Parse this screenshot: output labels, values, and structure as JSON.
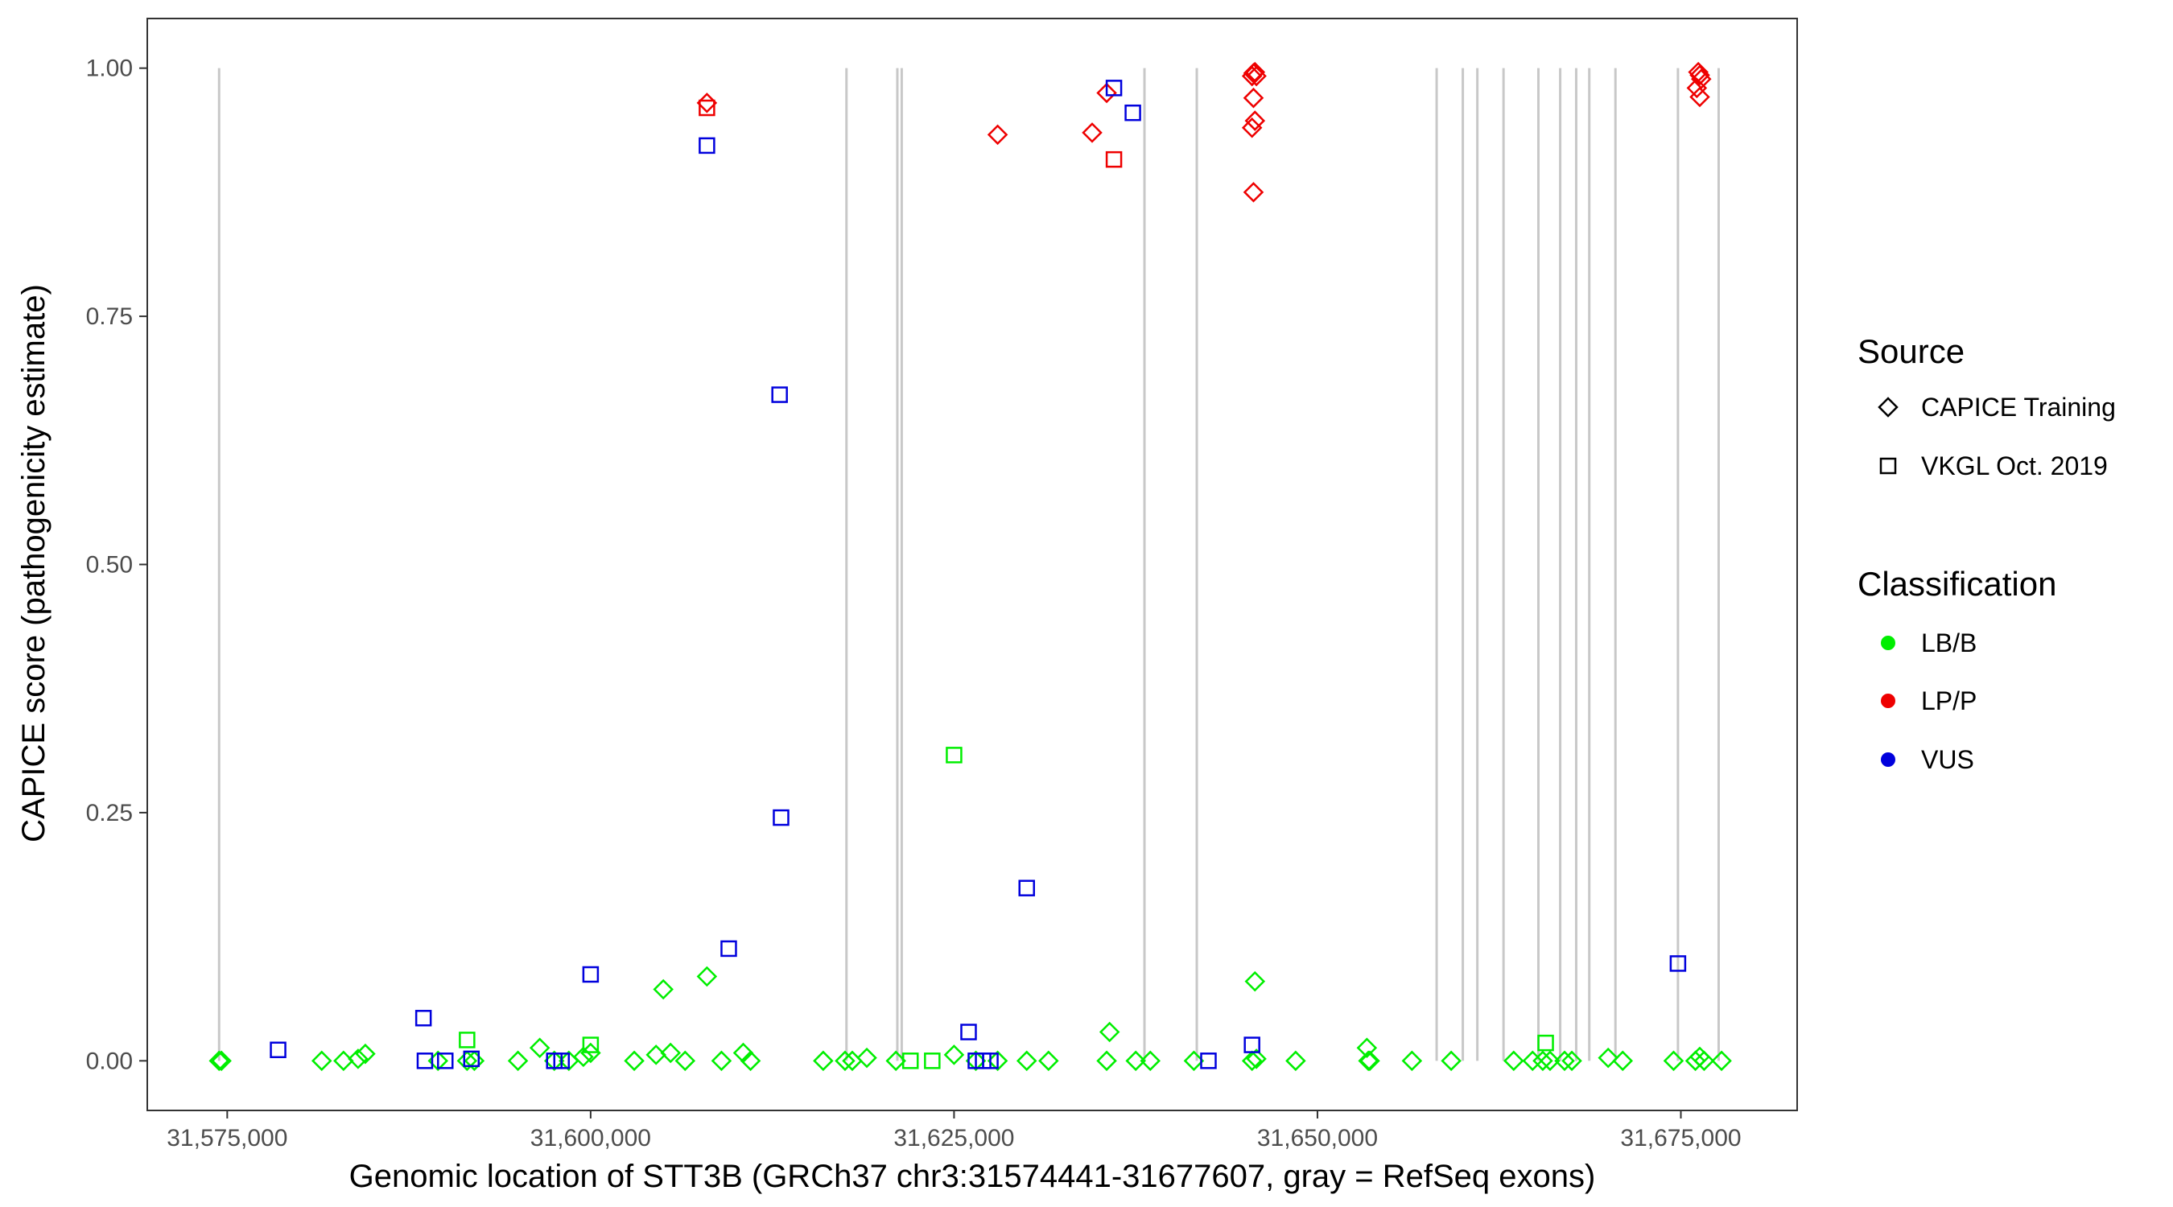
{
  "chart_data": {
    "type": "scatter",
    "xlabel": "Genomic location of STT3B (GRCh37 chr3:31574441-31677607, gray = RefSeq exons)",
    "ylabel": "CAPICE score (pathogenicity estimate)",
    "xlim": [
      31569500,
      31683000
    ],
    "ylim": [
      -0.05,
      1.05
    ],
    "x_ticks": [
      31575000,
      31600000,
      31625000,
      31650000,
      31675000
    ],
    "x_tick_labels": [
      "31,575,000",
      "31,600,000",
      "31,625,000",
      "31,650,000",
      "31,675,000"
    ],
    "y_ticks": [
      0,
      0.25,
      0.5,
      0.75,
      1.0
    ],
    "y_tick_labels": [
      "0.00",
      "0.25",
      "0.50",
      "0.75",
      "1.00"
    ],
    "exons": [
      31574441,
      31617600,
      31621100,
      31621400,
      31638100,
      31641700,
      31658200,
      31660000,
      31661000,
      31662800,
      31665200,
      31666700,
      31667800,
      31668700,
      31670500,
      31674800,
      31677600
    ],
    "legend": {
      "source_title": "Source",
      "source_items": [
        {
          "label": "CAPICE Training",
          "shape": "diamond"
        },
        {
          "label": "VKGL Oct. 2019",
          "shape": "square"
        }
      ],
      "class_title": "Classification",
      "class_items": [
        {
          "label": "LB/B",
          "color": "#00ee00"
        },
        {
          "label": "LP/P",
          "color": "#ee0000"
        },
        {
          "label": "VUS",
          "color": "#0000dd"
        }
      ]
    },
    "colors": {
      "LB/B": "#00ee00",
      "LP/P": "#ee0000",
      "VUS": "#0000dd",
      "exon": "#c8c8c8"
    },
    "series": [
      {
        "name": "CAPICE Training LB/B",
        "shape": "diamond",
        "class": "LB/B",
        "points": [
          [
            31574441,
            0.0
          ],
          [
            31574600,
            0.0
          ],
          [
            31581500,
            0.0
          ],
          [
            31583000,
            0.0
          ],
          [
            31584000,
            0.002
          ],
          [
            31584500,
            0.007
          ],
          [
            31589500,
            0.0
          ],
          [
            31591500,
            0.0
          ],
          [
            31592000,
            0.0
          ],
          [
            31595000,
            0.0
          ],
          [
            31596500,
            0.013
          ],
          [
            31597500,
            0.0
          ],
          [
            31598500,
            0.0
          ],
          [
            31599500,
            0.004
          ],
          [
            31600000,
            0.008
          ],
          [
            31603000,
            0.0
          ],
          [
            31604500,
            0.006
          ],
          [
            31605000,
            0.072
          ],
          [
            31605500,
            0.008
          ],
          [
            31606500,
            0.0
          ],
          [
            31608000,
            0.085
          ],
          [
            31609000,
            0.0
          ],
          [
            31610500,
            0.008
          ],
          [
            31611000,
            0.0
          ],
          [
            31616000,
            0.0
          ],
          [
            31617500,
            0.0
          ],
          [
            31618000,
            0.0
          ],
          [
            31619000,
            0.003
          ],
          [
            31621000,
            0.0
          ],
          [
            31625000,
            0.006
          ],
          [
            31626500,
            0.0
          ],
          [
            31628000,
            0.0
          ],
          [
            31630000,
            0.0
          ],
          [
            31631500,
            0.0
          ],
          [
            31635500,
            0.0
          ],
          [
            31635700,
            0.029
          ],
          [
            31637500,
            0.0
          ],
          [
            31638500,
            0.0
          ],
          [
            31641500,
            0.0
          ],
          [
            31645500,
            0.0
          ],
          [
            31645700,
            0.08
          ],
          [
            31645800,
            0.002
          ],
          [
            31648500,
            0.0
          ],
          [
            31653400,
            0.013
          ],
          [
            31653500,
            0.0
          ],
          [
            31653600,
            0.0
          ],
          [
            31656500,
            0.0
          ],
          [
            31659200,
            0.0
          ],
          [
            31663500,
            0.0
          ],
          [
            31664800,
            0.0
          ],
          [
            31665500,
            0.0
          ],
          [
            31666000,
            0.0
          ],
          [
            31667000,
            0.0
          ],
          [
            31667500,
            0.0
          ],
          [
            31670000,
            0.003
          ],
          [
            31671000,
            0.0
          ],
          [
            31674500,
            0.0
          ],
          [
            31676000,
            0.0
          ],
          [
            31676300,
            0.004
          ],
          [
            31676600,
            0.0
          ],
          [
            31677800,
            0.0
          ]
        ]
      },
      {
        "name": "CAPICE Training LP/P",
        "shape": "diamond",
        "class": "LP/P",
        "points": [
          [
            31608000,
            0.965
          ],
          [
            31628000,
            0.933
          ],
          [
            31634500,
            0.935
          ],
          [
            31635500,
            0.975
          ],
          [
            31645500,
            0.992
          ],
          [
            31645600,
            0.995
          ],
          [
            31645700,
            0.996
          ],
          [
            31645800,
            0.992
          ],
          [
            31645600,
            0.97
          ],
          [
            31645700,
            0.947
          ],
          [
            31645500,
            0.94
          ],
          [
            31645600,
            0.875
          ],
          [
            31676200,
            0.996
          ],
          [
            31676300,
            0.993
          ],
          [
            31676400,
            0.989
          ],
          [
            31676100,
            0.98
          ],
          [
            31676300,
            0.971
          ]
        ]
      },
      {
        "name": "VKGL LB/B",
        "shape": "square",
        "class": "LB/B",
        "points": [
          [
            31591500,
            0.021
          ],
          [
            31600000,
            0.016
          ],
          [
            31622000,
            0.0
          ],
          [
            31623500,
            0.0
          ],
          [
            31625000,
            0.308
          ],
          [
            31665700,
            0.018
          ]
        ]
      },
      {
        "name": "VKGL VUS",
        "shape": "square",
        "class": "VUS",
        "points": [
          [
            31578500,
            0.011
          ],
          [
            31588500,
            0.043
          ],
          [
            31588600,
            0.0
          ],
          [
            31590000,
            0.0
          ],
          [
            31591800,
            0.002
          ],
          [
            31597500,
            0.0
          ],
          [
            31598000,
            0.0
          ],
          [
            31600000,
            0.087
          ],
          [
            31608000,
            0.922
          ],
          [
            31609500,
            0.113
          ],
          [
            31613000,
            0.671
          ],
          [
            31613100,
            0.245
          ],
          [
            31626000,
            0.029
          ],
          [
            31626500,
            0.0
          ],
          [
            31627000,
            0.0
          ],
          [
            31627500,
            0.0
          ],
          [
            31630000,
            0.174
          ],
          [
            31636000,
            0.98
          ],
          [
            31637300,
            0.955
          ],
          [
            31642500,
            0.0
          ],
          [
            31645500,
            0.016
          ],
          [
            31674800,
            0.098
          ]
        ]
      },
      {
        "name": "VKGL LP/P",
        "shape": "square",
        "class": "LP/P",
        "points": [
          [
            31608000,
            0.96
          ],
          [
            31636000,
            0.908
          ]
        ]
      }
    ]
  }
}
